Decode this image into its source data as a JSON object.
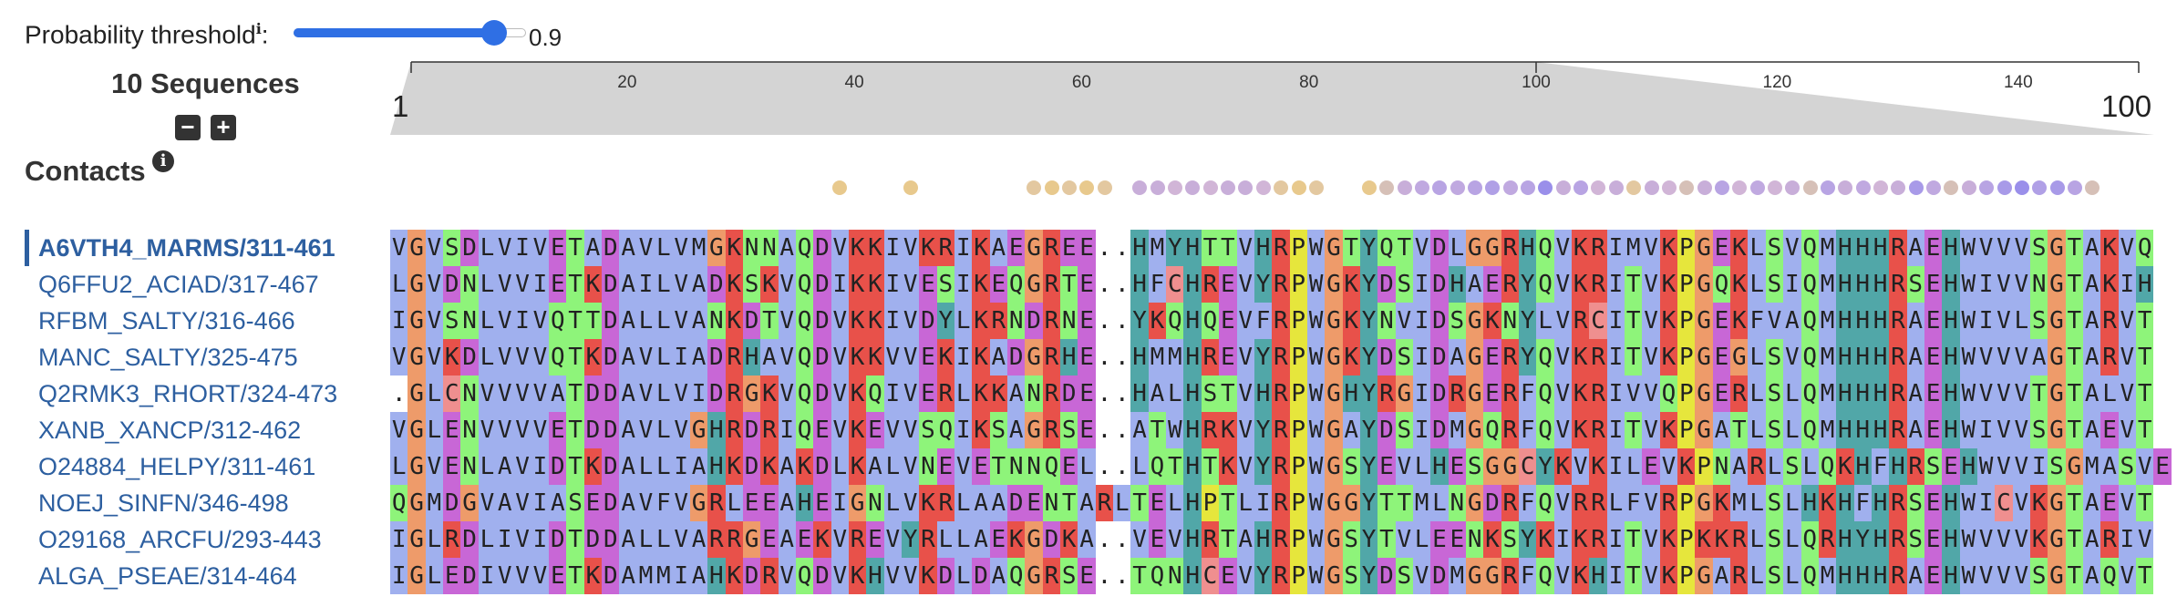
{
  "threshold": {
    "label": "Probability threshold",
    "info_icon": "ℹ",
    "suffix": ":",
    "value": "0.9",
    "fraction": 0.9
  },
  "panel": {
    "sequence_count": "10 Sequences",
    "zoom_out": "−",
    "zoom_in": "+",
    "contacts_label": "Contacts",
    "contacts_info": "i"
  },
  "ruler": {
    "start_label": "1",
    "end_label": "100",
    "ticks": [
      "20",
      "40",
      "60",
      "80",
      "100",
      "120",
      "140"
    ]
  },
  "sequences": [
    {
      "name": "A6VTH4_MARMS/311-461",
      "seq": "VGVSDLVIVETADAVLVMGKNNAQDVKKIVKRIKAEGREE..HMYHTTVHRPWGTYQTVDLGGRHQVKRIMVKPGEKLSVQMHHHRAEHWVVVSGTAKVQ"
    },
    {
      "name": "Q6FFU2_ACIAD/317-467",
      "seq": "LGVDNLVVIETKDAILVADKSKVQDIKKIVESIKEQGRTE..HFCHREVYRPWGKYDSIDHAERYQVKRITVKPGQKLSIQMHHHRSEHWIVVNGTAKIH"
    },
    {
      "name": "RFBM_SALTY/316-466",
      "seq": "IGVSNLVIVQTTDALLVANKDTVQDVKKIVDYLKRNDRNE..YKQHQEVFRPWGKYNVIDSGKNYLVRCITVKPGEKFVAQMHHHRAEHWIVLSGTARVT"
    },
    {
      "name": "MANC_SALTY/325-475",
      "seq": "VGVKDLVVVQTKDAVLIADRHAVQDVKKVVEKIKADGRHE..HMMHREVYRPWGKYDSIDAGERYQVKRITVKPGEGLSVQMHHHRAEHWVVVAGTARVT"
    },
    {
      "name": "Q2RMK3_RHORT/324-473",
      "seq": ".GLCNVVVVATDDAVLVIDRGKVQDVKQIVERLKKANRDE..HALHSTVHRPWGHYRGIDRGERFQVKRIVVQPGERLSLQMHHHRAEHWVVVTGTALVT"
    },
    {
      "name": "XANB_XANCP/312-462",
      "seq": "VGLENVVVVETDDAVLVGHRDRIQEVKEVVSQIKSAGRSE..ATWHRKVYRPWGAYDSIDMGQRFQVKRITVKPGATLSLQMHHHRAEHWIVVSGTAEVT"
    },
    {
      "name": "O24884_HELPY/311-461",
      "seq": "LGVENLAVIDTKDALLIAHKDKAKDLKALVNEVETNNQEL..LQTHTKVYRPWGSYEVLHESGGCYKVKILEVKPNARLSLQKHFHRSEHWVVISGMASVE"
    },
    {
      "name": "NOEJ_SINFN/346-498",
      "seq": "QGMDGVAVIASEDAVFVGRLEEAHEIGNLVKRLAADENTARLTELHPTLIRPWGGYTTMLNGDRFQVRRLFVRPGKMLSLHKHFHRSEHWICVKGTAEVT"
    },
    {
      "name": "O29168_ARCFU/293-443",
      "seq": "IGLRDLIVIDTDDALLVARRGEAEKVREVYRLLAEKGDKA..VEVHRTAHRPWGSYTVLEENKSYKIKRITVKPKKRLSLQRHYHRSEHWVVVKGTARIV"
    },
    {
      "name": "ALGA_PSEAE/314-464",
      "seq": "IGLEDIVVVETKDAMMIAHKDRVQDVKHVVKDLDAQGRSE..TQNHCEVYRPWGSYDSVDMGGRFQVKHITVKPGARLSLQMHHHRAEHWVVVSGTAQVT"
    }
  ],
  "contacts_dots": [
    {
      "pos": 25,
      "color": "#e8c98d"
    },
    {
      "pos": 29,
      "color": "#e8c98d"
    },
    {
      "pos": 36,
      "color": "#e3c8a0"
    },
    {
      "pos": 37,
      "color": "#e8c98d"
    },
    {
      "pos": 38,
      "color": "#e3c8a0"
    },
    {
      "pos": 39,
      "color": "#e8c98d"
    },
    {
      "pos": 40,
      "color": "#e3c8a0"
    },
    {
      "pos": 42,
      "color": "#c8aed9"
    },
    {
      "pos": 43,
      "color": "#c8aed9"
    },
    {
      "pos": 44,
      "color": "#d1b5d7"
    },
    {
      "pos": 45,
      "color": "#c8aed9"
    },
    {
      "pos": 46,
      "color": "#d1b5d7"
    },
    {
      "pos": 47,
      "color": "#c8aed9"
    },
    {
      "pos": 48,
      "color": "#c8aed9"
    },
    {
      "pos": 49,
      "color": "#d1b5d7"
    },
    {
      "pos": 50,
      "color": "#e3c8a0"
    },
    {
      "pos": 51,
      "color": "#e8c98d"
    },
    {
      "pos": 52,
      "color": "#e3c8a0"
    },
    {
      "pos": 55,
      "color": "#e8c98d"
    },
    {
      "pos": 56,
      "color": "#d6c0b7"
    },
    {
      "pos": 57,
      "color": "#c8aed9"
    },
    {
      "pos": 58,
      "color": "#c0a9e0"
    },
    {
      "pos": 59,
      "color": "#b8a4e3"
    },
    {
      "pos": 60,
      "color": "#c0a9e0"
    },
    {
      "pos": 61,
      "color": "#b8a4e3"
    },
    {
      "pos": 62,
      "color": "#b0a0e6"
    },
    {
      "pos": 63,
      "color": "#c0a9e0"
    },
    {
      "pos": 64,
      "color": "#b8a4e3"
    },
    {
      "pos": 65,
      "color": "#9a8fea"
    },
    {
      "pos": 66,
      "color": "#c8aed9"
    },
    {
      "pos": 67,
      "color": "#b8a4e3"
    },
    {
      "pos": 68,
      "color": "#d1b5d7"
    },
    {
      "pos": 69,
      "color": "#c8aed9"
    },
    {
      "pos": 70,
      "color": "#e3c8a0"
    },
    {
      "pos": 71,
      "color": "#c8aed9"
    },
    {
      "pos": 72,
      "color": "#d1b5d7"
    },
    {
      "pos": 73,
      "color": "#d6c0b7"
    },
    {
      "pos": 74,
      "color": "#c8aed9"
    },
    {
      "pos": 75,
      "color": "#b8a4e3"
    },
    {
      "pos": 76,
      "color": "#d1b5d7"
    },
    {
      "pos": 77,
      "color": "#c0a9e0"
    },
    {
      "pos": 78,
      "color": "#d1b5d7"
    },
    {
      "pos": 79,
      "color": "#c8aed9"
    },
    {
      "pos": 80,
      "color": "#d6c0b7"
    },
    {
      "pos": 81,
      "color": "#b8a4e3"
    },
    {
      "pos": 82,
      "color": "#c8aed9"
    },
    {
      "pos": 83,
      "color": "#c0a9e0"
    },
    {
      "pos": 84,
      "color": "#d1b5d7"
    },
    {
      "pos": 85,
      "color": "#c8aed9"
    },
    {
      "pos": 86,
      "color": "#a89ae8"
    },
    {
      "pos": 87,
      "color": "#c0a9e0"
    },
    {
      "pos": 88,
      "color": "#d6c0b7"
    },
    {
      "pos": 89,
      "color": "#c8aed9"
    },
    {
      "pos": 90,
      "color": "#b8a4e3"
    },
    {
      "pos": 91,
      "color": "#a89ae8"
    },
    {
      "pos": 92,
      "color": "#9a8fea"
    },
    {
      "pos": 93,
      "color": "#b0a0e6"
    },
    {
      "pos": 94,
      "color": "#a89ae8"
    },
    {
      "pos": 95,
      "color": "#b8a4e3"
    },
    {
      "pos": 96,
      "color": "#d6c0b7"
    }
  ],
  "colors": {
    "accent": "#2f6fe4",
    "link": "#2d5fa0"
  }
}
